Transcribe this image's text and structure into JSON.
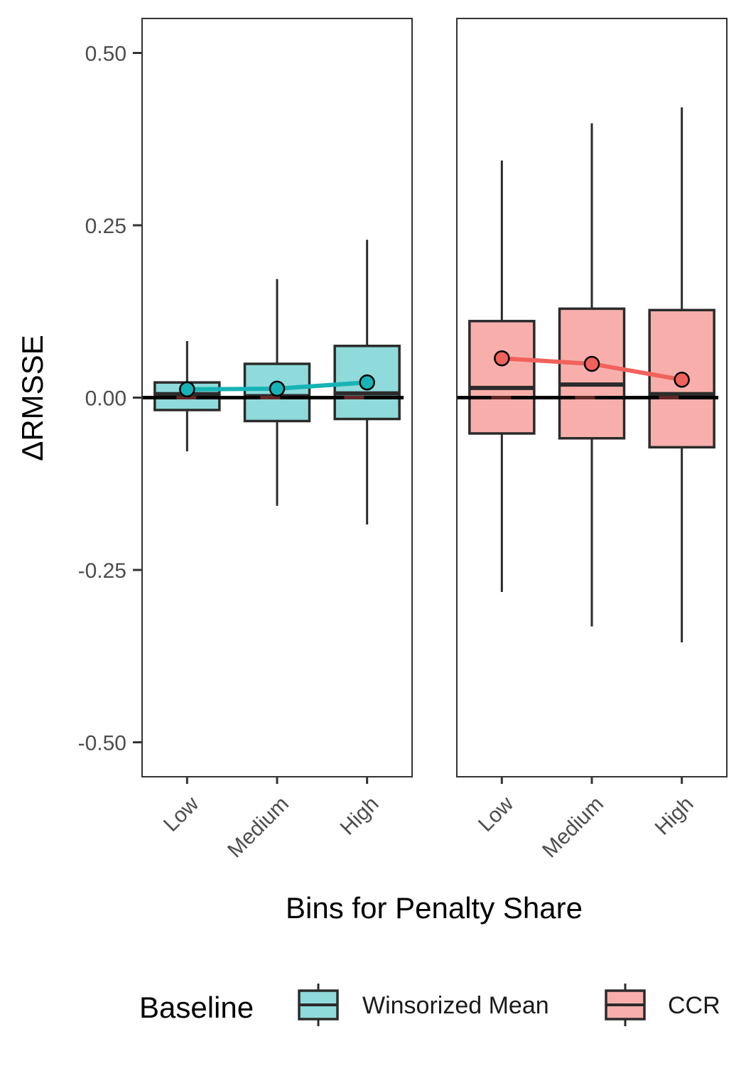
{
  "chart_data": {
    "type": "boxplot",
    "ylabel": "ΔRMSSE",
    "xlabel": "Bins for Penalty Share",
    "ylim": [
      -0.55,
      0.55
    ],
    "yticks": [
      0.5,
      0.25,
      0.0,
      -0.25,
      -0.5
    ],
    "ytick_labels": [
      "0.50",
      "0.25",
      "0.00",
      "-0.25",
      "-0.50"
    ],
    "categories": [
      "Low",
      "Medium",
      "High"
    ],
    "reference_line": 0.0,
    "legend": {
      "title": "Baseline",
      "position": "bottom"
    },
    "series": [
      {
        "name": "Winsorized Mean",
        "fill": "#8fdadb",
        "line_color": "#17b3b5",
        "boxes": [
          {
            "category": "Low",
            "whisker_low": -0.078,
            "q1": -0.018,
            "median": 0.005,
            "q3": 0.022,
            "whisker_high": 0.082,
            "mean": 0.012
          },
          {
            "category": "Medium",
            "whisker_low": -0.157,
            "q1": -0.034,
            "median": 0.002,
            "q3": 0.049,
            "whisker_high": 0.172,
            "mean": 0.013
          },
          {
            "category": "High",
            "whisker_low": -0.184,
            "q1": -0.031,
            "median": 0.006,
            "q3": 0.075,
            "whisker_high": 0.229,
            "mean": 0.022
          }
        ]
      },
      {
        "name": "CCR",
        "fill": "#f8afab",
        "line_color": "#f0625b",
        "boxes": [
          {
            "category": "Low",
            "whisker_low": -0.282,
            "q1": -0.052,
            "median": 0.014,
            "q3": 0.111,
            "whisker_high": 0.344,
            "mean": 0.057
          },
          {
            "category": "Medium",
            "whisker_low": -0.332,
            "q1": -0.059,
            "median": 0.019,
            "q3": 0.129,
            "whisker_high": 0.398,
            "mean": 0.049
          },
          {
            "category": "High",
            "whisker_low": -0.355,
            "q1": -0.072,
            "median": 0.005,
            "q3": 0.127,
            "whisker_high": 0.421,
            "mean": 0.026
          }
        ]
      }
    ]
  }
}
